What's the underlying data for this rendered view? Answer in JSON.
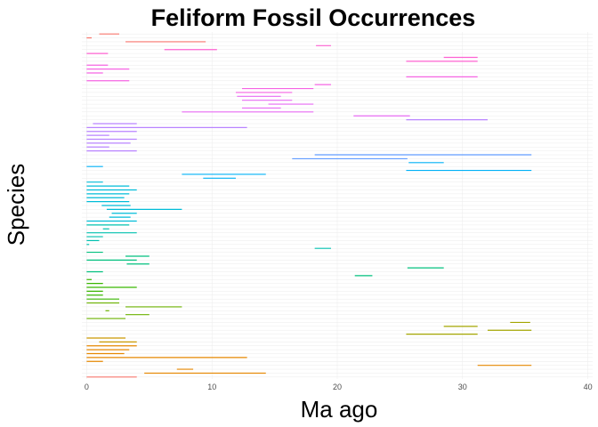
{
  "chart_data": {
    "type": "bar",
    "orientation": "horizontal-range",
    "title": "Feliform Fossil Occurrences",
    "xlabel": "Ma ago",
    "ylabel": "Species",
    "xlim": [
      0,
      40
    ],
    "x_ticks": [
      0,
      10,
      20,
      30,
      40
    ],
    "grid": true,
    "legend": "none",
    "palette": [
      "#F8766D",
      "#E58700",
      "#C99800",
      "#A3A500",
      "#6BB100",
      "#00BA38",
      "#00BF7D",
      "#00C0AF",
      "#00BCD8",
      "#00B0F6",
      "#619CFF",
      "#B983FF",
      "#E76BF3",
      "#FD61D1",
      "#FF67A4"
    ],
    "categories": [],
    "ranges": [
      [
        1.0,
        2.6
      ],
      [
        0.0,
        0.4
      ],
      [
        3.1,
        9.5
      ],
      [
        18.3,
        19.5
      ],
      [
        6.2,
        10.4
      ],
      [
        0.0,
        1.7
      ],
      [
        28.5,
        31.2
      ],
      [
        25.5,
        31.2
      ],
      [
        0.0,
        1.7
      ],
      [
        0.0,
        3.4
      ],
      [
        0.0,
        1.3
      ],
      [
        25.5,
        31.2
      ],
      [
        0.0,
        3.4
      ],
      [
        18.2,
        19.5
      ],
      [
        12.4,
        18.1
      ],
      [
        11.9,
        16.4
      ],
      [
        12.0,
        15.5
      ],
      [
        12.4,
        16.4
      ],
      [
        14.5,
        18.1
      ],
      [
        12.4,
        15.5
      ],
      [
        7.6,
        18.1
      ],
      [
        21.3,
        25.8
      ],
      [
        25.5,
        32.0
      ],
      [
        0.5,
        4.0
      ],
      [
        0.0,
        12.8
      ],
      [
        0.0,
        4.0
      ],
      [
        0.0,
        1.8
      ],
      [
        0.0,
        4.0
      ],
      [
        0.0,
        3.5
      ],
      [
        0.0,
        1.8
      ],
      [
        0.0,
        4.0
      ],
      [
        18.2,
        35.5
      ],
      [
        16.4,
        25.6
      ],
      [
        25.7,
        28.5
      ],
      [
        0.0,
        1.3
      ],
      [
        25.5,
        35.5
      ],
      [
        7.6,
        14.3
      ],
      [
        9.3,
        11.9
      ],
      [
        0.0,
        1.3
      ],
      [
        0.0,
        3.4
      ],
      [
        0.0,
        4.0
      ],
      [
        0.0,
        3.4
      ],
      [
        0.0,
        3.0
      ],
      [
        0.0,
        3.4
      ],
      [
        1.2,
        3.5
      ],
      [
        1.6,
        7.6
      ],
      [
        2.0,
        4.0
      ],
      [
        1.8,
        3.5
      ],
      [
        0.0,
        4.0
      ],
      [
        0.0,
        3.4
      ],
      [
        1.3,
        1.8
      ],
      [
        0.0,
        4.0
      ],
      [
        0.0,
        1.3
      ],
      [
        0.0,
        1.0
      ],
      [
        0.0,
        0.2
      ],
      [
        18.2,
        19.5
      ],
      [
        0.0,
        1.3
      ],
      [
        3.1,
        5.0
      ],
      [
        0.0,
        4.0
      ],
      [
        3.2,
        5.0
      ],
      [
        25.6,
        28.5
      ],
      [
        0.0,
        1.3
      ],
      [
        21.4,
        22.8
      ],
      [
        0.0,
        0.4
      ],
      [
        0.0,
        1.3
      ],
      [
        0.0,
        4.0
      ],
      [
        0.0,
        1.3
      ],
      [
        0.0,
        1.3
      ],
      [
        0.0,
        2.6
      ],
      [
        0.0,
        2.6
      ],
      [
        3.1,
        7.6
      ],
      [
        1.5,
        1.8
      ],
      [
        3.1,
        5.0
      ],
      [
        0.0,
        3.1
      ],
      [
        33.8,
        35.4
      ],
      [
        28.5,
        31.2
      ],
      [
        32.0,
        35.5
      ],
      [
        25.5,
        31.2
      ],
      [
        0.0,
        3.1
      ],
      [
        1.0,
        4.0
      ],
      [
        0.0,
        4.0
      ],
      [
        0.0,
        3.4
      ],
      [
        0.0,
        3.0
      ],
      [
        0.0,
        12.8
      ],
      [
        0.0,
        1.3
      ],
      [
        31.2,
        35.5
      ],
      [
        7.2,
        8.5
      ],
      [
        4.6,
        14.3
      ],
      [
        0.0,
        4.0
      ]
    ],
    "colors": [
      "#F8766D",
      "#F8766D",
      "#F8766D",
      "#FD61D1",
      "#FD61D1",
      "#FD61D1",
      "#FD61D1",
      "#FD61D1",
      "#F564E3",
      "#F564E3",
      "#F564E3",
      "#F564E3",
      "#F564E3",
      "#F564E3",
      "#F564E3",
      "#F564E3",
      "#E76BF3",
      "#E76BF3",
      "#E76BF3",
      "#E76BF3",
      "#E76BF3",
      "#E76BF3",
      "#B983FF",
      "#B983FF",
      "#B983FF",
      "#B983FF",
      "#B983FF",
      "#B983FF",
      "#B983FF",
      "#B983FF",
      "#B983FF",
      "#619CFF",
      "#619CFF",
      "#00B0F6",
      "#00B0F6",
      "#00B0F6",
      "#00B0F6",
      "#00B0F6",
      "#00BCD8",
      "#00BCD8",
      "#00BCD8",
      "#00BCD8",
      "#00BCD8",
      "#00BCD8",
      "#00BCD8",
      "#00BCD8",
      "#00BCD8",
      "#00BCD8",
      "#00BCD8",
      "#00C0AF",
      "#00C0AF",
      "#00C0AF",
      "#00C0AF",
      "#00C0AF",
      "#00C0AF",
      "#00C0AF",
      "#00BF7D",
      "#00BF7D",
      "#00BF7D",
      "#00BF7D",
      "#00BF7D",
      "#00BF7D",
      "#00BF7D",
      "#39B600",
      "#39B600",
      "#39B600",
      "#39B600",
      "#39B600",
      "#39B600",
      "#6BB100",
      "#6BB100",
      "#6BB100",
      "#6BB100",
      "#6BB100",
      "#A3A500",
      "#A3A500",
      "#A3A500",
      "#A3A500",
      "#C99800",
      "#C99800",
      "#E58700",
      "#E58700",
      "#E58700",
      "#E58700",
      "#E58700",
      "#E58700",
      "#E58700",
      "#E58700",
      "#F8766D"
    ]
  }
}
